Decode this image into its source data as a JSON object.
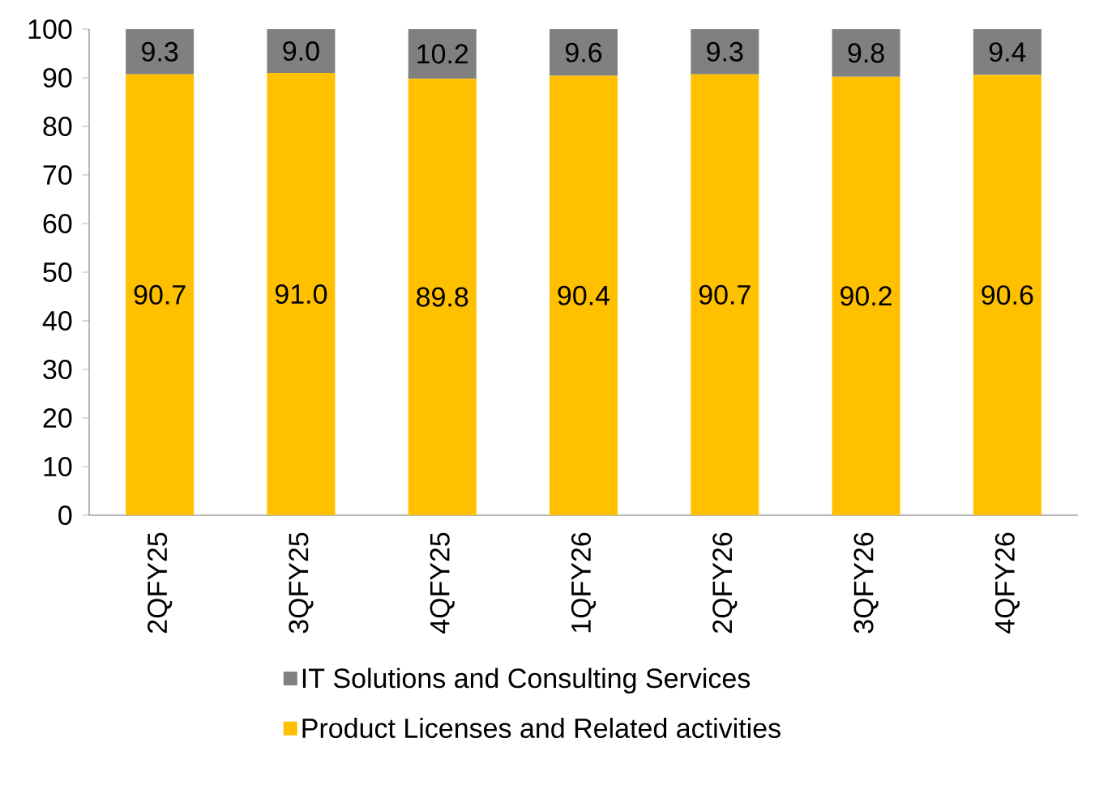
{
  "chart_data": {
    "type": "bar",
    "stacked": true,
    "categories": [
      "2QFY25",
      "3QFY25",
      "4QFY25",
      "1QFY26",
      "2QFY26",
      "3QFY26",
      "4QFY26"
    ],
    "series": [
      {
        "name": "Product Licenses and Related activities",
        "color": "#ffc000",
        "values": [
          90.7,
          91.0,
          89.8,
          90.4,
          90.7,
          90.2,
          90.6
        ],
        "value_labels": [
          "90.7",
          "91.0",
          "89.8",
          "90.4",
          "90.7",
          "90.2",
          "90.6"
        ]
      },
      {
        "name": "IT Solutions and Consulting Services",
        "color": "#808080",
        "values": [
          9.3,
          9.0,
          10.2,
          9.6,
          9.3,
          9.8,
          9.4
        ],
        "value_labels": [
          "9.3",
          "9.0",
          "10.2",
          "9.6",
          "9.3",
          "9.8",
          "9.4"
        ]
      }
    ],
    "ylim": [
      0,
      100
    ],
    "yticks": [
      0,
      10,
      20,
      30,
      40,
      50,
      60,
      70,
      80,
      90,
      100
    ],
    "legend": "bottom"
  }
}
